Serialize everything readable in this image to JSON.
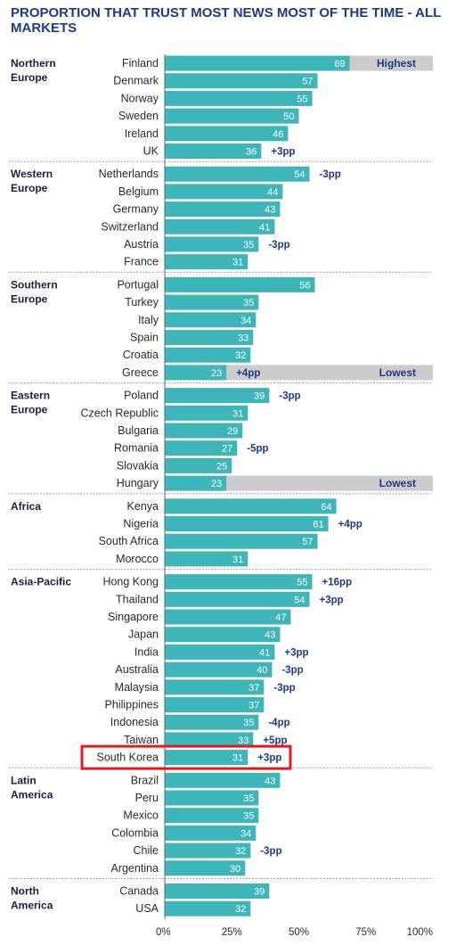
{
  "title": "PROPORTION THAT TRUST MOST NEWS MOST OF THE TIME - ALL MARKETS",
  "chart_data": {
    "type": "bar",
    "orientation": "horizontal",
    "title": "PROPORTION THAT TRUST MOST NEWS MOST OF THE TIME - ALL MARKETS",
    "xlim": [
      0,
      100
    ],
    "x_ticks": [
      "0%",
      "25%",
      "50%",
      "75%",
      "100%"
    ],
    "bar_color": "#3db5b9",
    "highlight_color": "#cccccc",
    "highlight_box_color": "#e11b22",
    "groups": [
      {
        "name": [
          "Northern",
          "Europe"
        ],
        "rows": [
          {
            "country": "Finland",
            "value": 69,
            "note": "Highest"
          },
          {
            "country": "Denmark",
            "value": 57
          },
          {
            "country": "Norway",
            "value": 55
          },
          {
            "country": "Sweden",
            "value": 50
          },
          {
            "country": "Ireland",
            "value": 46
          },
          {
            "country": "UK",
            "value": 36,
            "change": "+3pp"
          }
        ]
      },
      {
        "name": [
          "Western",
          "Europe"
        ],
        "rows": [
          {
            "country": "Netherlands",
            "value": 54,
            "change": "-3pp"
          },
          {
            "country": "Belgium",
            "value": 44
          },
          {
            "country": "Germany",
            "value": 43
          },
          {
            "country": "Switzerland",
            "value": 41
          },
          {
            "country": "Austria",
            "value": 35,
            "change": "-3pp"
          },
          {
            "country": "France",
            "value": 31
          }
        ]
      },
      {
        "name": [
          "Southern",
          "Europe"
        ],
        "rows": [
          {
            "country": "Portugal",
            "value": 56
          },
          {
            "country": "Turkey",
            "value": 35
          },
          {
            "country": "Italy",
            "value": 34
          },
          {
            "country": "Spain",
            "value": 33
          },
          {
            "country": "Croatia",
            "value": 32
          },
          {
            "country": "Greece",
            "value": 23,
            "change": "+4pp",
            "note": "Lowest"
          }
        ]
      },
      {
        "name": [
          "Eastern",
          "Europe"
        ],
        "rows": [
          {
            "country": "Poland",
            "value": 39,
            "change": "-3pp"
          },
          {
            "country": "Czech Republic",
            "value": 31
          },
          {
            "country": "Bulgaria",
            "value": 29
          },
          {
            "country": "Romania",
            "value": 27,
            "change": "-5pp"
          },
          {
            "country": "Slovakia",
            "value": 25
          },
          {
            "country": "Hungary",
            "value": 23,
            "note": "Lowest"
          }
        ]
      },
      {
        "name": [
          "Africa"
        ],
        "rows": [
          {
            "country": "Kenya",
            "value": 64
          },
          {
            "country": "Nigeria",
            "value": 61,
            "change": "+4pp"
          },
          {
            "country": "South Africa",
            "value": 57
          },
          {
            "country": "Morocco",
            "value": 31
          }
        ]
      },
      {
        "name": [
          "Asia-Pacific"
        ],
        "rows": [
          {
            "country": "Hong Kong",
            "value": 55,
            "change": "+16pp"
          },
          {
            "country": "Thailand",
            "value": 54,
            "change": "+3pp"
          },
          {
            "country": "Singapore",
            "value": 47
          },
          {
            "country": "Japan",
            "value": 43
          },
          {
            "country": "India",
            "value": 41,
            "change": "+3pp"
          },
          {
            "country": "Australia",
            "value": 40,
            "change": "-3pp"
          },
          {
            "country": "Malaysia",
            "value": 37,
            "change": "-3pp"
          },
          {
            "country": "Philippines",
            "value": 37
          },
          {
            "country": "Indonesia",
            "value": 35,
            "change": "-4pp"
          },
          {
            "country": "Taiwan",
            "value": 33,
            "change": "+5pp"
          },
          {
            "country": "South Korea",
            "value": 31,
            "change": "+3pp",
            "highlighted": true
          }
        ]
      },
      {
        "name": [
          "Latin",
          "America"
        ],
        "rows": [
          {
            "country": "Brazil",
            "value": 43
          },
          {
            "country": "Peru",
            "value": 35
          },
          {
            "country": "Mexico",
            "value": 35
          },
          {
            "country": "Colombia",
            "value": 34
          },
          {
            "country": "Chile",
            "value": 32,
            "change": "-3pp"
          },
          {
            "country": "Argentina",
            "value": 30
          }
        ]
      },
      {
        "name": [
          "North",
          "America"
        ],
        "rows": [
          {
            "country": "Canada",
            "value": 39
          },
          {
            "country": "USA",
            "value": 32
          }
        ]
      }
    ]
  }
}
